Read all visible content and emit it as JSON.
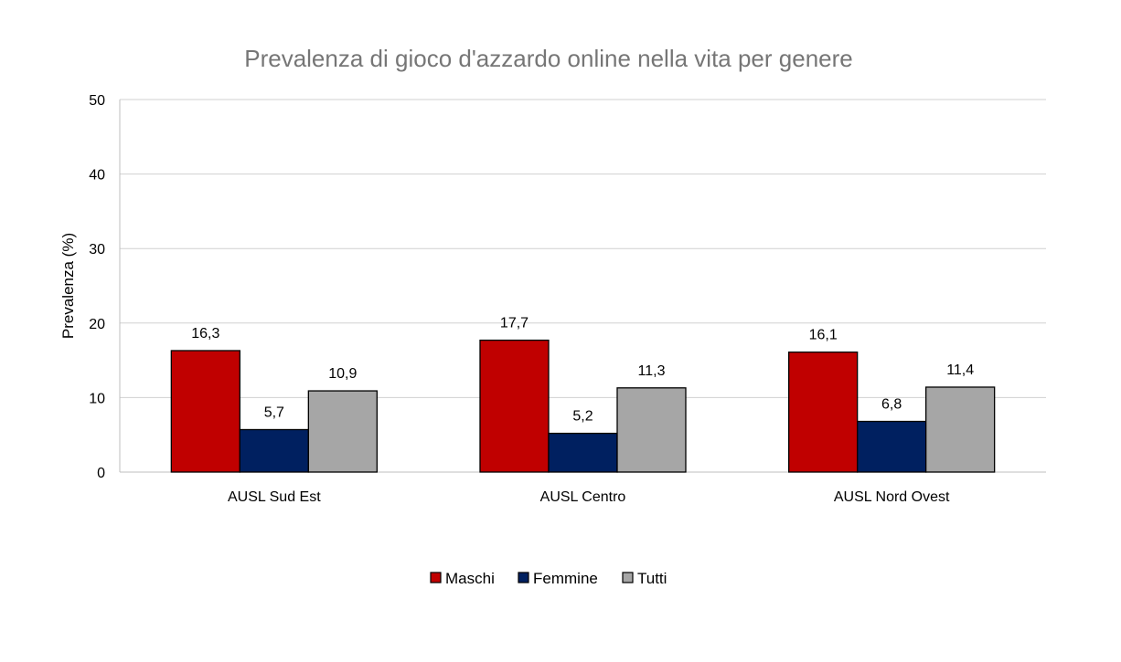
{
  "chart_data": {
    "type": "bar",
    "title": "Prevalenza di gioco d'azzardo online nella vita per genere",
    "xlabel": "",
    "ylabel": "Prevalenza (%)",
    "ylim": [
      0,
      50
    ],
    "yticks": [
      0,
      10,
      20,
      30,
      40,
      50
    ],
    "grid": true,
    "legend_position": "bottom",
    "categories": [
      "AUSL Sud Est",
      "AUSL Centro",
      "AUSL Nord Ovest"
    ],
    "series": [
      {
        "name": "Maschi",
        "color": "#C00000",
        "values": [
          16.3,
          17.7,
          16.1
        ],
        "labels": [
          "16,3",
          "17,7",
          "16,1"
        ]
      },
      {
        "name": "Femmine",
        "color": "#002060",
        "values": [
          5.7,
          5.2,
          6.8
        ],
        "labels": [
          "5,7",
          "5,2",
          "6,8"
        ]
      },
      {
        "name": "Tutti",
        "color": "#A6A6A6",
        "values": [
          10.9,
          11.3,
          11.4
        ],
        "labels": [
          "10,9",
          "11,3",
          "11,4"
        ]
      }
    ]
  }
}
